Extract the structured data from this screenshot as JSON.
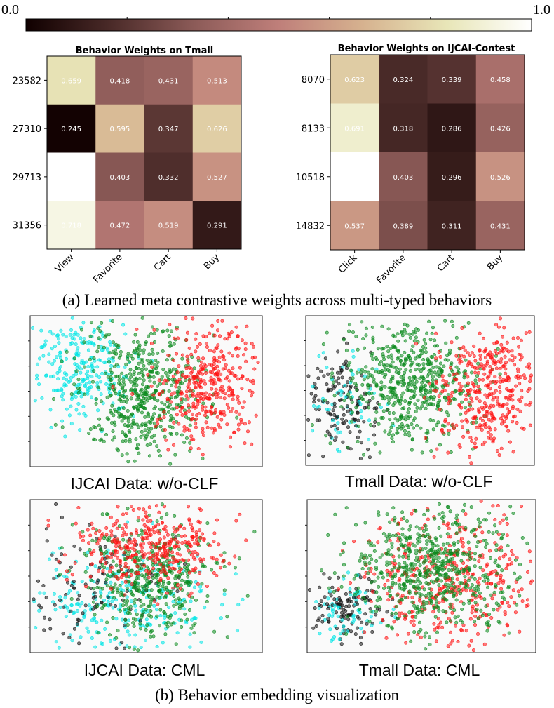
{
  "colorbar": {
    "min_label": "0.0",
    "max_label": "1.0",
    "vmin": 0,
    "vmax": 1,
    "colors": [
      "#100000",
      "#4a2a28",
      "#8c5b58",
      "#bf7f7a",
      "#d6b28f",
      "#e8e6b8",
      "#ffffff"
    ]
  },
  "caption_a": "(a) Learned meta contrastive weights across multi-typed behaviors",
  "caption_b": "(b) Behavior embedding visualization",
  "scatter_colors": {
    "cyan": "#00e5e5",
    "green": "#0b8a1e",
    "red": "#ff1010",
    "black": "#111111"
  },
  "chart_data": [
    {
      "type": "heatmap",
      "title": "Behavior Weights on Tmall",
      "rows": [
        "23582",
        "27310",
        "29713",
        "31356"
      ],
      "columns": [
        "View",
        "Favorite",
        "Cart",
        "Buy"
      ],
      "values": [
        [
          0.659,
          0.418,
          0.431,
          0.513
        ],
        [
          0.245,
          0.595,
          0.347,
          0.626
        ],
        [
          null,
          0.403,
          0.332,
          0.527
        ],
        [
          0.718,
          0.472,
          0.519,
          0.291
        ]
      ]
    },
    {
      "type": "heatmap",
      "title": "Behavior Weights on IJCAI-Contest",
      "rows": [
        "8070",
        "8133",
        "10518",
        "14832"
      ],
      "columns": [
        "Click",
        "Favorite",
        "Cart",
        "Buy"
      ],
      "values": [
        [
          0.623,
          0.324,
          0.339,
          0.458
        ],
        [
          0.691,
          0.318,
          0.286,
          0.426
        ],
        [
          null,
          0.403,
          0.296,
          0.526
        ],
        [
          0.537,
          0.389,
          0.311,
          0.431
        ]
      ]
    },
    {
      "type": "scatter",
      "caption": "IJCAI Data: w/o-CLF",
      "clusters": [
        "cyan",
        "green",
        "red"
      ]
    },
    {
      "type": "scatter",
      "caption": "Tmall Data: w/o-CLF",
      "clusters": [
        "black",
        "green",
        "red"
      ]
    },
    {
      "type": "scatter",
      "caption": "IJCAI Data: CML",
      "clusters": [
        "cyan",
        "black",
        "green",
        "red"
      ]
    },
    {
      "type": "scatter",
      "caption": "Tmall Data: CML",
      "clusters": [
        "black",
        "green",
        "red"
      ]
    }
  ]
}
